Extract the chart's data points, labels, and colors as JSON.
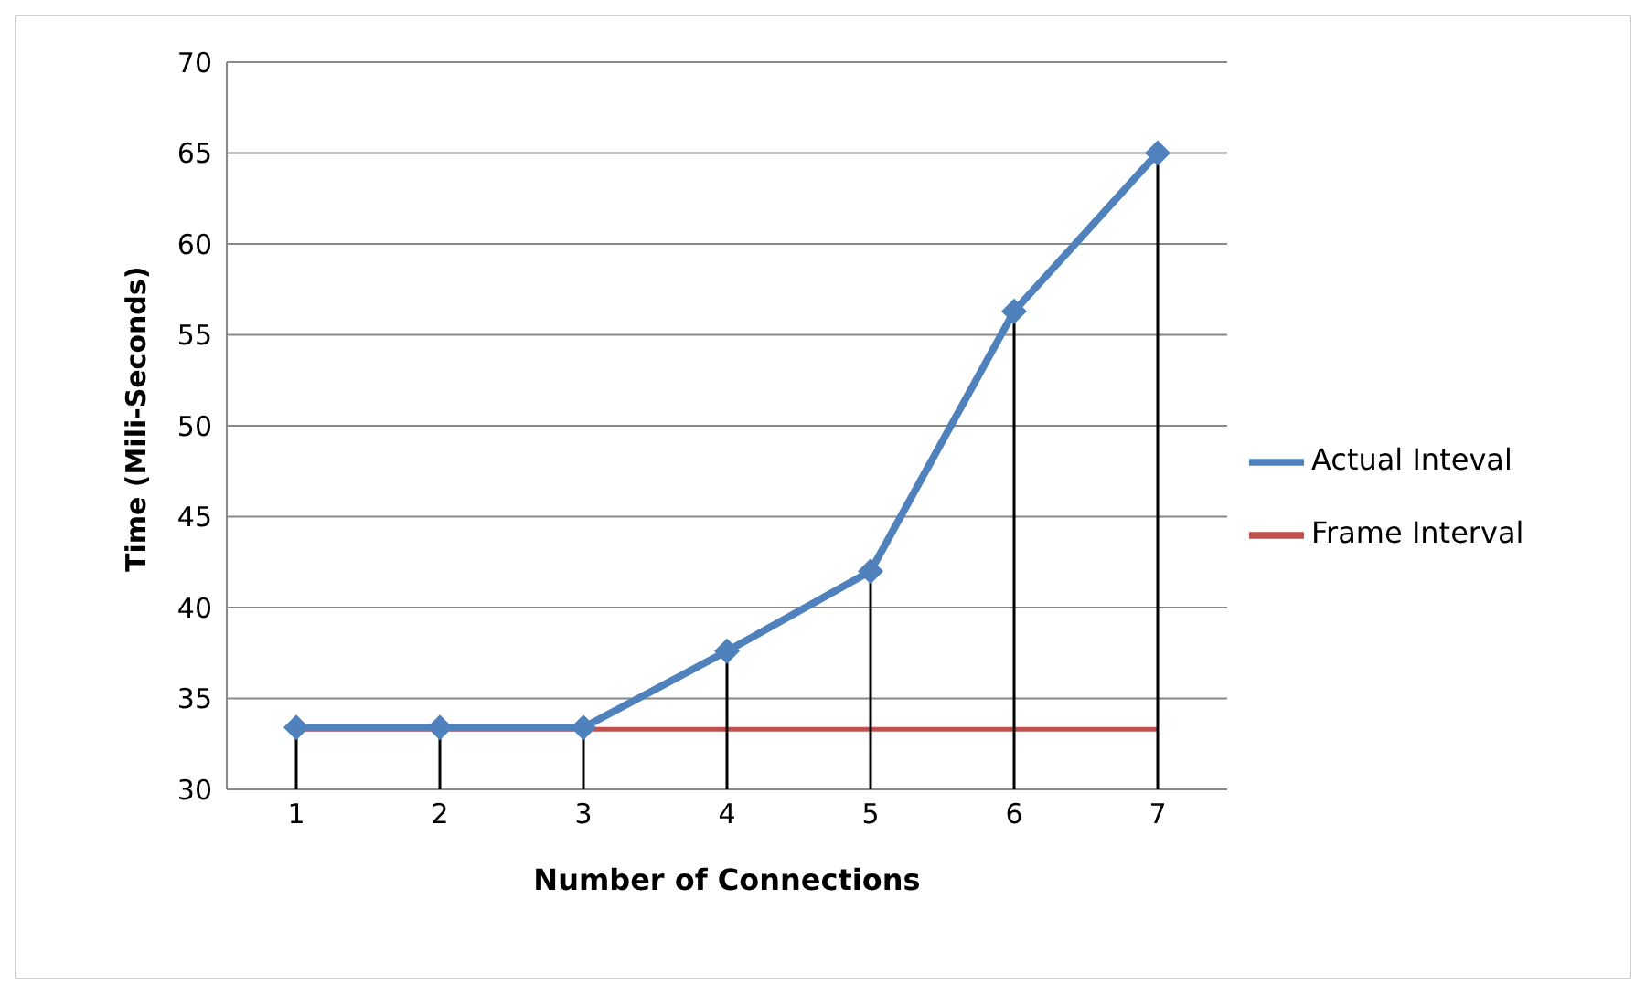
{
  "chart_data": {
    "type": "line",
    "xlabel": "Number of Connections",
    "ylabel": "Time (Mili-Seconds)",
    "categories": [
      "1",
      "2",
      "3",
      "4",
      "5",
      "6",
      "7"
    ],
    "series": [
      {
        "name": "Actual Inteval",
        "color": "#4f81bd",
        "marker": "diamond",
        "values": [
          33.4,
          33.4,
          33.4,
          37.6,
          42,
          56.3,
          65
        ],
        "errors": [
          [
            30,
            33.4
          ],
          [
            30,
            33.4
          ],
          [
            30,
            33.4
          ],
          [
            30,
            37.6
          ],
          [
            30,
            42
          ],
          [
            30,
            56.3
          ],
          [
            30,
            65
          ]
        ]
      },
      {
        "name": "Frame Interval",
        "color": "#c0504d",
        "marker": "none",
        "values": [
          33.3,
          33.3,
          33.3,
          33.3,
          33.3,
          33.3,
          33.3
        ]
      }
    ],
    "ylim": [
      30,
      70
    ],
    "yticks": [
      30,
      35,
      40,
      45,
      50,
      55,
      60,
      65,
      70
    ],
    "grid": "y",
    "legend": "right"
  }
}
